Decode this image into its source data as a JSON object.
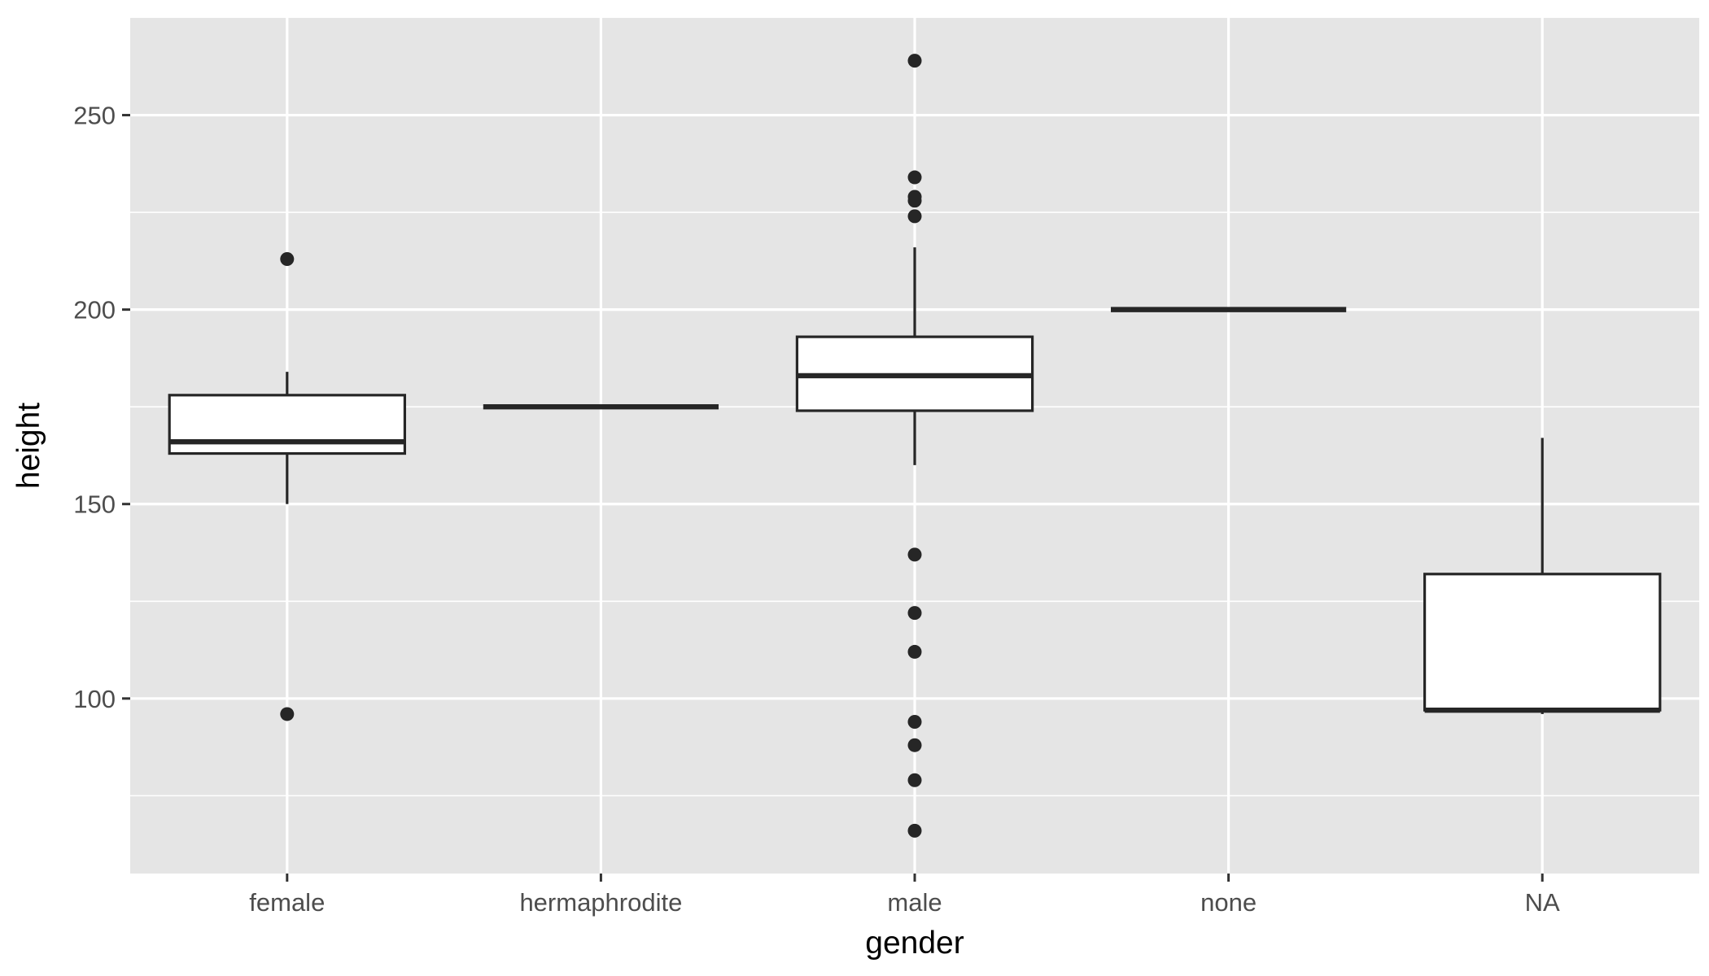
{
  "chart_data": {
    "type": "box",
    "xlabel": "gender",
    "ylabel": "height",
    "ylim": [
      55,
      275
    ],
    "yticks": [
      100,
      150,
      200,
      250
    ],
    "yticks_minor": [
      75,
      125,
      175,
      225
    ],
    "grid": true,
    "colors": {
      "panel": "#e5e5e5",
      "grid": "#ffffff",
      "box_fill": "#ffffff",
      "stroke": "#262626"
    },
    "categories": [
      "female",
      "hermaphrodite",
      "male",
      "none",
      "NA"
    ],
    "boxes": [
      {
        "category": "female",
        "whisker_low": 150,
        "q1": 163,
        "median": 166,
        "q3": 178,
        "whisker_high": 184,
        "outliers": [
          213,
          96
        ]
      },
      {
        "category": "hermaphrodite",
        "whisker_low": 175,
        "q1": 175,
        "median": 175,
        "q3": 175,
        "whisker_high": 175,
        "outliers": []
      },
      {
        "category": "male",
        "whisker_low": 160,
        "q1": 174,
        "median": 183,
        "q3": 193,
        "whisker_high": 216,
        "outliers": [
          264,
          234,
          229,
          228,
          224,
          137,
          122,
          112,
          94,
          88,
          79,
          66
        ]
      },
      {
        "category": "none",
        "whisker_low": 200,
        "q1": 200,
        "median": 200,
        "q3": 200,
        "whisker_high": 200,
        "outliers": []
      },
      {
        "category": "NA",
        "whisker_low": 96,
        "q1": 97,
        "median": 97,
        "q3": 132,
        "whisker_high": 167,
        "outliers": []
      }
    ]
  }
}
